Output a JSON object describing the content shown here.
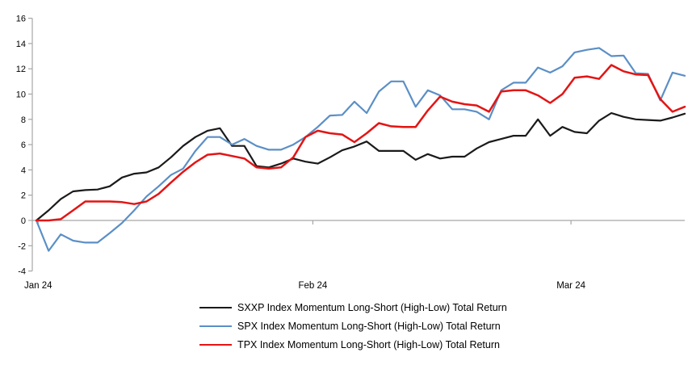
{
  "chart_data": {
    "type": "line",
    "title": "",
    "xlabel": "",
    "ylabel": "",
    "ylim": [
      -4,
      16
    ],
    "y_ticks": [
      16,
      14,
      12,
      10,
      8,
      6,
      4,
      2,
      0,
      -2,
      -4
    ],
    "x_tick_labels": [
      "Jan 24",
      "Feb 24",
      "Mar 24"
    ],
    "x_tick_positions": [
      0.15,
      22.6,
      43.7
    ],
    "grid": false,
    "legend_position": "bottom-center",
    "axis_color": "#a6a6a6",
    "label_color": "#000000",
    "series": [
      {
        "name": "SXXP Index Momentum Long-Short (High-Low) Total Return",
        "slug": "sxxp",
        "color": "#1a1a1a",
        "stroke_width": 2.2,
        "values": [
          0.0,
          0.8,
          1.7,
          2.3,
          2.4,
          2.45,
          2.7,
          3.4,
          3.7,
          3.8,
          4.2,
          5.0,
          5.9,
          6.6,
          7.1,
          7.3,
          5.9,
          5.9,
          4.3,
          4.2,
          4.5,
          4.9,
          4.65,
          4.5,
          5.0,
          5.55,
          5.85,
          6.25,
          5.5,
          5.5,
          5.5,
          4.8,
          5.25,
          4.9,
          5.05,
          5.05,
          5.7,
          6.2,
          6.45,
          6.7,
          6.7,
          8.0,
          6.7,
          7.4,
          7.0,
          6.9,
          7.9,
          8.5,
          8.2,
          8.0,
          7.95,
          7.9,
          8.15,
          8.45
        ]
      },
      {
        "name": "SPX Index Momentum Long-Short (High-Low) Total Return",
        "slug": "spx",
        "color": "#5b8fc6",
        "stroke_width": 2.2,
        "values": [
          0.0,
          -2.4,
          -1.1,
          -1.6,
          -1.75,
          -1.75,
          -1.0,
          -0.2,
          0.8,
          1.9,
          2.7,
          3.6,
          4.1,
          5.5,
          6.6,
          6.6,
          6.0,
          6.45,
          5.9,
          5.6,
          5.6,
          6.0,
          6.6,
          7.4,
          8.3,
          8.35,
          9.4,
          8.5,
          10.2,
          11.0,
          11.0,
          9.0,
          10.3,
          9.9,
          8.8,
          8.8,
          8.6,
          8.0,
          10.3,
          10.9,
          10.9,
          12.1,
          11.7,
          12.2,
          13.3,
          13.5,
          13.65,
          13.0,
          13.05,
          11.65,
          11.6,
          9.5,
          11.7,
          11.45
        ]
      },
      {
        "name": "TPX Index Momentum Long-Short (High-Low) Total Return",
        "slug": "tpx",
        "color": "#e41414",
        "stroke_width": 2.5,
        "values": [
          0.0,
          0.0,
          0.1,
          0.8,
          1.5,
          1.5,
          1.5,
          1.45,
          1.3,
          1.5,
          2.1,
          3.0,
          3.85,
          4.6,
          5.2,
          5.3,
          5.1,
          4.9,
          4.2,
          4.1,
          4.2,
          5.0,
          6.6,
          7.1,
          6.9,
          6.8,
          6.2,
          6.9,
          7.7,
          7.45,
          7.4,
          7.4,
          8.7,
          9.8,
          9.4,
          9.2,
          9.1,
          8.6,
          10.2,
          10.3,
          10.3,
          9.9,
          9.3,
          10.0,
          11.3,
          11.4,
          11.2,
          12.3,
          11.8,
          11.55,
          11.5,
          9.6,
          8.6,
          9.0
        ]
      }
    ]
  }
}
